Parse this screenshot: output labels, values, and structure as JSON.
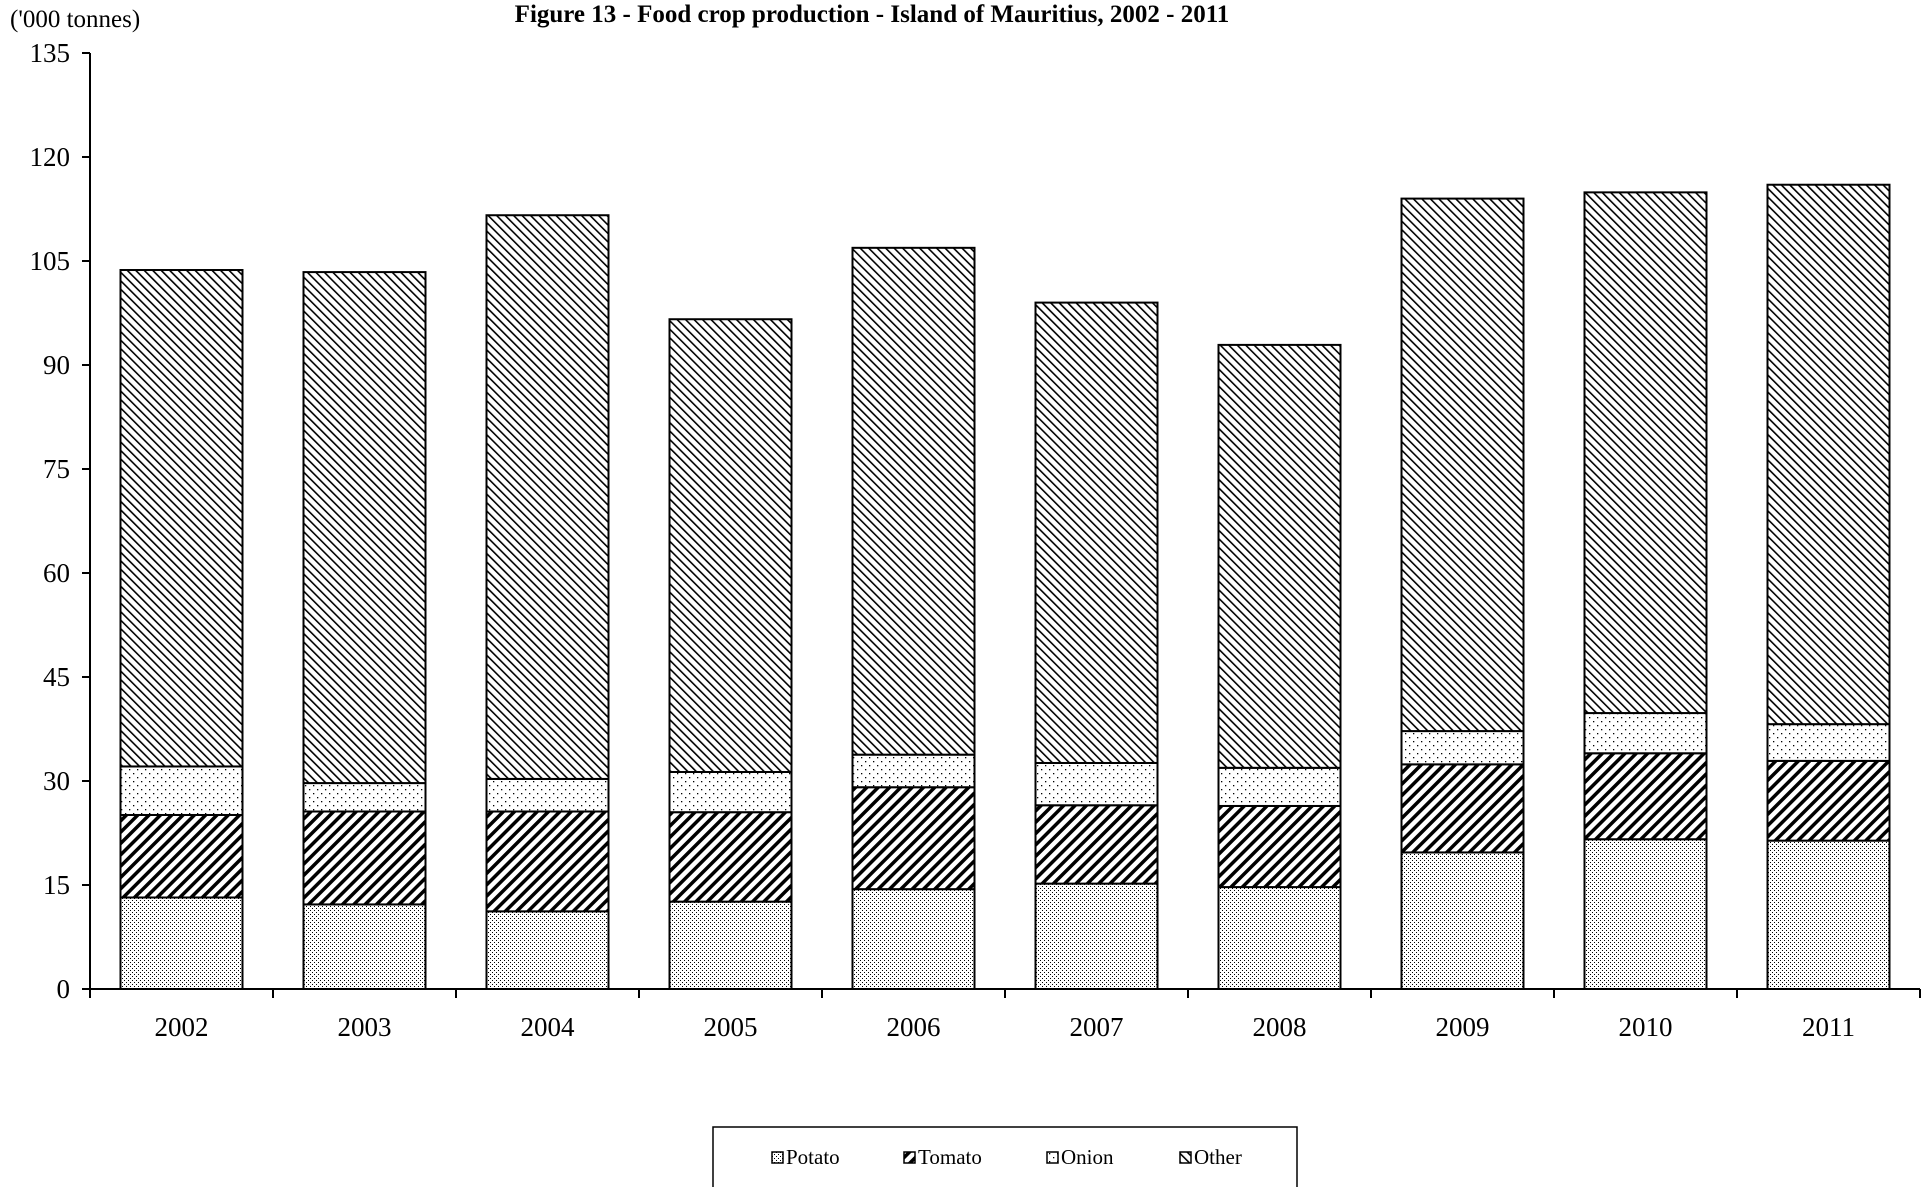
{
  "chart_data": {
    "type": "bar",
    "stacked": true,
    "title": "Figure 13 - Food crop production - Island of Mauritius, 2002 - 2011",
    "ylabel": "('000 tonnes)",
    "xlabel": "",
    "ylim": [
      0,
      135
    ],
    "yticks": [
      0,
      15,
      30,
      45,
      60,
      75,
      90,
      105,
      120,
      135
    ],
    "categories": [
      "2002",
      "2003",
      "2004",
      "2005",
      "2006",
      "2007",
      "2008",
      "2009",
      "2010",
      "2011"
    ],
    "series": [
      {
        "name": "Potato",
        "pattern": "dots",
        "values": [
          13.2,
          12.2,
          11.2,
          12.6,
          14.4,
          15.2,
          14.7,
          19.7,
          21.6,
          21.4
        ]
      },
      {
        "name": "Tomato",
        "pattern": "diagonal-dense",
        "values": [
          11.9,
          13.4,
          14.4,
          12.9,
          14.7,
          11.3,
          11.7,
          12.7,
          12.4,
          11.5
        ]
      },
      {
        "name": "Onion",
        "pattern": "sparse-dots",
        "values": [
          7.0,
          4.1,
          4.7,
          5.8,
          4.7,
          6.1,
          5.5,
          4.8,
          5.8,
          5.3
        ]
      },
      {
        "name": "Other",
        "pattern": "diagonal-back",
        "values": [
          71.6,
          73.7,
          81.3,
          65.3,
          73.1,
          66.4,
          61.0,
          76.8,
          75.1,
          77.8
        ]
      }
    ],
    "legend_position": "bottom-center",
    "grid": false
  }
}
